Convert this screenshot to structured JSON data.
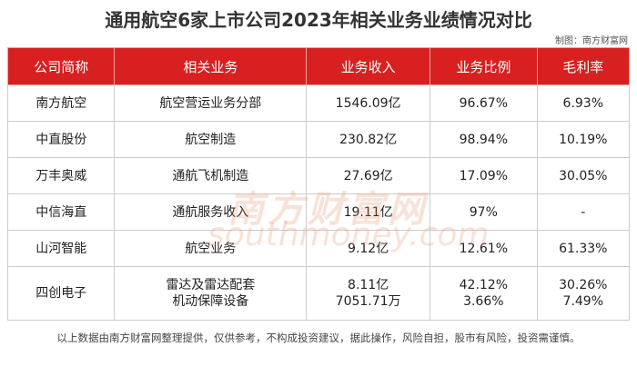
{
  "header": {
    "title": "通用航空6家上市公司2023年相关业务业绩情况对比",
    "source": "制图：南方财富网"
  },
  "table": {
    "columns": [
      "公司简称",
      "相关业务",
      "业务收入",
      "业务比例",
      "毛利率"
    ],
    "rows": [
      [
        "南方航空",
        "航空营运业务分部",
        "1546.09亿",
        "96.67%",
        "6.93%"
      ],
      [
        "中直股份",
        "航空制造",
        "230.82亿",
        "98.94%",
        "10.19%"
      ],
      [
        "万丰奥威",
        "通航飞机制造",
        "27.69亿",
        "17.09%",
        "30.05%"
      ],
      [
        "中信海直",
        "通航服务收入",
        "19.11亿",
        "97%",
        "-"
      ],
      [
        "山河智能",
        "航空业务",
        "9.12亿",
        "12.61%",
        "61.33%"
      ],
      [
        "四创电子",
        [
          "雷达及雷达配套",
          "机动保障设备"
        ],
        [
          "8.11亿",
          "7051.71万"
        ],
        [
          "42.12%",
          "3.66%"
        ],
        [
          "30.26%",
          "7.49%"
        ]
      ]
    ]
  },
  "watermark": {
    "name": "南方财富网",
    "domain": "southmoney.com"
  },
  "footnote": "以上数据由南方财富网整理提供，仅供参考，不构成投资建议，据此操作，风险自担，股市有风险，投资需谨慎。"
}
